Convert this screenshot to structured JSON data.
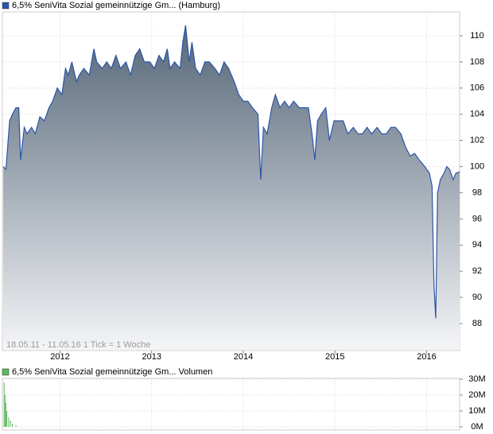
{
  "chart_data": [
    {
      "type": "area",
      "title": "6,5% SeniVita Sozial gemeinnützige Gm... (Hamburg)",
      "annotation": "18.05.11 - 11.05.16   1 Tick = 1 Woche",
      "color": "#2c55a8",
      "x": [
        2011.38,
        2011.41,
        2011.45,
        2011.48,
        2011.52,
        2011.55,
        2011.57,
        2011.61,
        2011.64,
        2011.69,
        2011.73,
        2011.78,
        2011.83,
        2011.88,
        2011.92,
        2011.97,
        2012.02,
        2012.06,
        2012.09,
        2012.13,
        2012.18,
        2012.21,
        2012.26,
        2012.32,
        2012.37,
        2012.4,
        2012.46,
        2012.51,
        2012.56,
        2012.61,
        2012.66,
        2012.72,
        2012.77,
        2012.82,
        2012.87,
        2012.92,
        2012.98,
        2013.03,
        2013.08,
        2013.13,
        2013.17,
        2013.2,
        2013.25,
        2013.31,
        2013.34,
        2013.37,
        2013.41,
        2013.44,
        2013.48,
        2013.53,
        2013.58,
        2013.63,
        2013.69,
        2013.74,
        2013.79,
        2013.84,
        2013.9,
        2013.95,
        2014.0,
        2014.05,
        2014.1,
        2014.16,
        2014.19,
        2014.22,
        2014.26,
        2014.31,
        2014.35,
        2014.4,
        2014.45,
        2014.5,
        2014.55,
        2014.61,
        2014.66,
        2014.71,
        2014.75,
        2014.78,
        2014.81,
        2014.85,
        2014.9,
        2014.94,
        2014.99,
        2015.04,
        2015.09,
        2015.14,
        2015.2,
        2015.25,
        2015.3,
        2015.35,
        2015.4,
        2015.46,
        2015.51,
        2015.56,
        2015.61,
        2015.66,
        2015.72,
        2015.77,
        2015.82,
        2015.87,
        2015.92,
        2015.98,
        2016.03,
        2016.06,
        2016.08,
        2016.1,
        2016.12,
        2016.15,
        2016.19,
        2016.22,
        2016.25,
        2016.29,
        2016.32,
        2016.36
      ],
      "values": [
        100.0,
        99.8,
        103.5,
        104,
        104.5,
        104.5,
        100.5,
        103,
        102.5,
        103,
        102.5,
        103.8,
        103.5,
        104.5,
        105,
        106,
        105.5,
        107.5,
        107,
        108,
        106.5,
        107,
        107.5,
        107,
        109,
        108,
        107.5,
        108,
        107.5,
        108.5,
        107.5,
        108,
        107,
        108.5,
        109,
        108,
        108,
        107.5,
        108.5,
        108,
        109,
        107.5,
        108,
        107.5,
        109.5,
        110.8,
        108,
        109.5,
        107.5,
        107,
        108,
        108,
        107.5,
        107,
        108,
        107.5,
        106.5,
        105.5,
        105,
        105,
        104.5,
        104,
        99,
        103,
        102.5,
        104.5,
        105.5,
        104.5,
        105,
        104.5,
        105,
        104.5,
        104.5,
        104.5,
        102.5,
        100.5,
        103.5,
        104,
        104.5,
        102,
        103.5,
        103.5,
        103.5,
        102.5,
        103,
        102.5,
        102.5,
        103,
        102.5,
        103,
        102.5,
        102.5,
        103,
        103,
        102.5,
        101.5,
        100.8,
        101,
        100.5,
        100,
        99.5,
        98.5,
        91,
        88.4,
        98,
        99,
        99.5,
        100,
        99.8,
        99,
        99.5,
        99.6
      ],
      "xlim": [
        2011.38,
        2016.36
      ],
      "xticks": [
        2012,
        2013,
        2014,
        2015,
        2016
      ],
      "ylim": [
        86,
        111.7
      ],
      "yticks": [
        88,
        90,
        92,
        94,
        96,
        98,
        100,
        102,
        104,
        106,
        108,
        110
      ],
      "grid": true
    },
    {
      "type": "bar",
      "title": "6,5% SeniVita Sozial gemeinnützige Gm... Volumen",
      "color": "#5cb85c",
      "x": [
        2011.39,
        2011.4,
        2011.41,
        2011.42,
        2011.44,
        2011.46,
        2011.48,
        2011.52
      ],
      "values": [
        28000000,
        20000000,
        15000000,
        10000000,
        6000000,
        4000000,
        2000000,
        1000000
      ],
      "xlim": [
        2011.38,
        2016.36
      ],
      "xticks": [
        2012,
        2013,
        2014,
        2015,
        2016
      ],
      "ylim": [
        0,
        30000000
      ],
      "yticks": [
        {
          "value": 0,
          "label": "0M"
        },
        {
          "value": 10000000,
          "label": "10M"
        },
        {
          "value": 20000000,
          "label": "20M"
        },
        {
          "value": 30000000,
          "label": "30M"
        }
      ],
      "grid": true
    }
  ]
}
